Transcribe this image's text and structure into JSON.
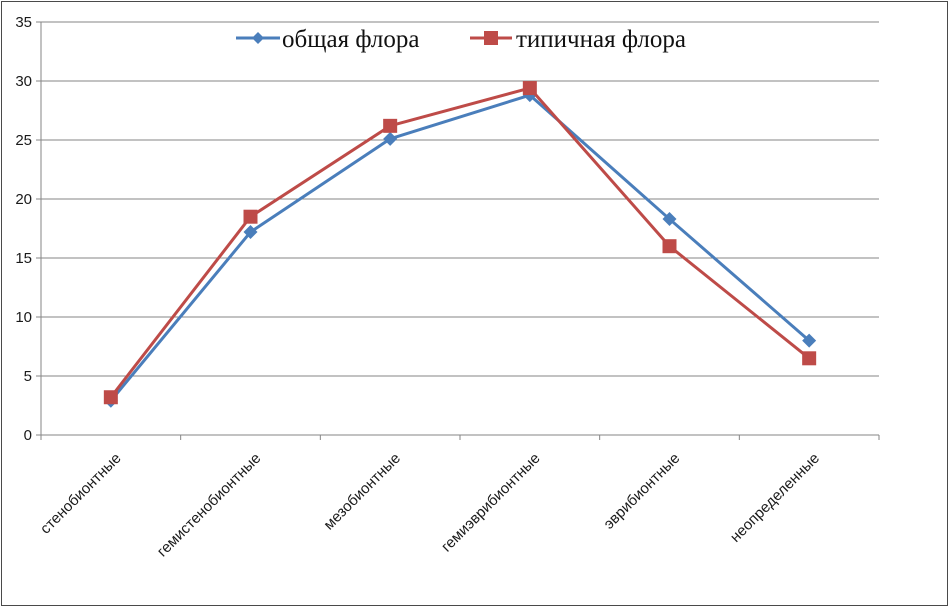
{
  "chart_data": {
    "type": "line",
    "categories": [
      "стенобионтные",
      "гемистенобионтные",
      "мезобионтные",
      "гемиэврибионтные",
      "эврибионтные",
      "неопределенные"
    ],
    "series": [
      {
        "name": "общая флора",
        "color": "#4a7ebb",
        "marker": "diamond",
        "values": [
          2.9,
          17.2,
          25.1,
          28.8,
          18.3,
          8.0
        ]
      },
      {
        "name": "типичная флора",
        "color": "#be4b48",
        "marker": "square",
        "values": [
          3.2,
          18.5,
          26.2,
          29.4,
          16.0,
          6.5
        ]
      }
    ],
    "ylim": [
      0,
      35
    ],
    "yticks": [
      "0",
      "5",
      "10",
      "15",
      "20",
      "25",
      "30",
      "35"
    ],
    "grid": true,
    "legend_position": "top-center"
  }
}
